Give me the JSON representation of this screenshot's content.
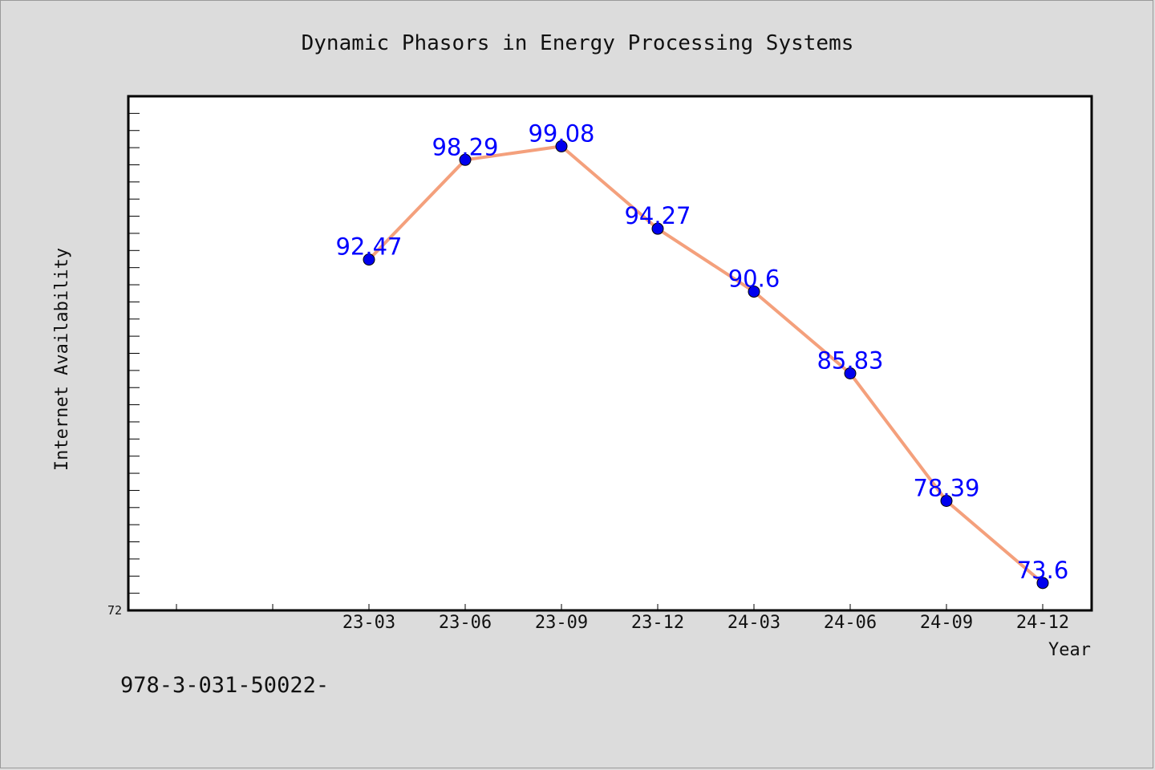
{
  "chart_data": {
    "type": "line",
    "title": "Dynamic Phasors in Energy Processing Systems",
    "xlabel": "Year",
    "ylabel": "Internet Availability",
    "categories": [
      "23-03",
      "23-06",
      "23-09",
      "23-12",
      "24-03",
      "24-06",
      "24-09",
      "24-12"
    ],
    "values": [
      92.47,
      98.29,
      99.08,
      94.27,
      90.6,
      85.83,
      78.39,
      73.6
    ],
    "data_labels": [
      "92.47",
      "98.29",
      "99.08",
      "94.27",
      "90.6",
      "85.83",
      "78.39",
      "73.6"
    ],
    "y_tick_labels": [
      "72"
    ],
    "ylim": [
      72,
      102
    ],
    "grid": false,
    "legend": "none",
    "colors": {
      "line": "#f4a07c",
      "marker": "#0000ee",
      "label": "#0000ff",
      "background": "#dcdcdc",
      "plot_background": "#ffffff"
    }
  },
  "footer": "978-3-031-50022-"
}
